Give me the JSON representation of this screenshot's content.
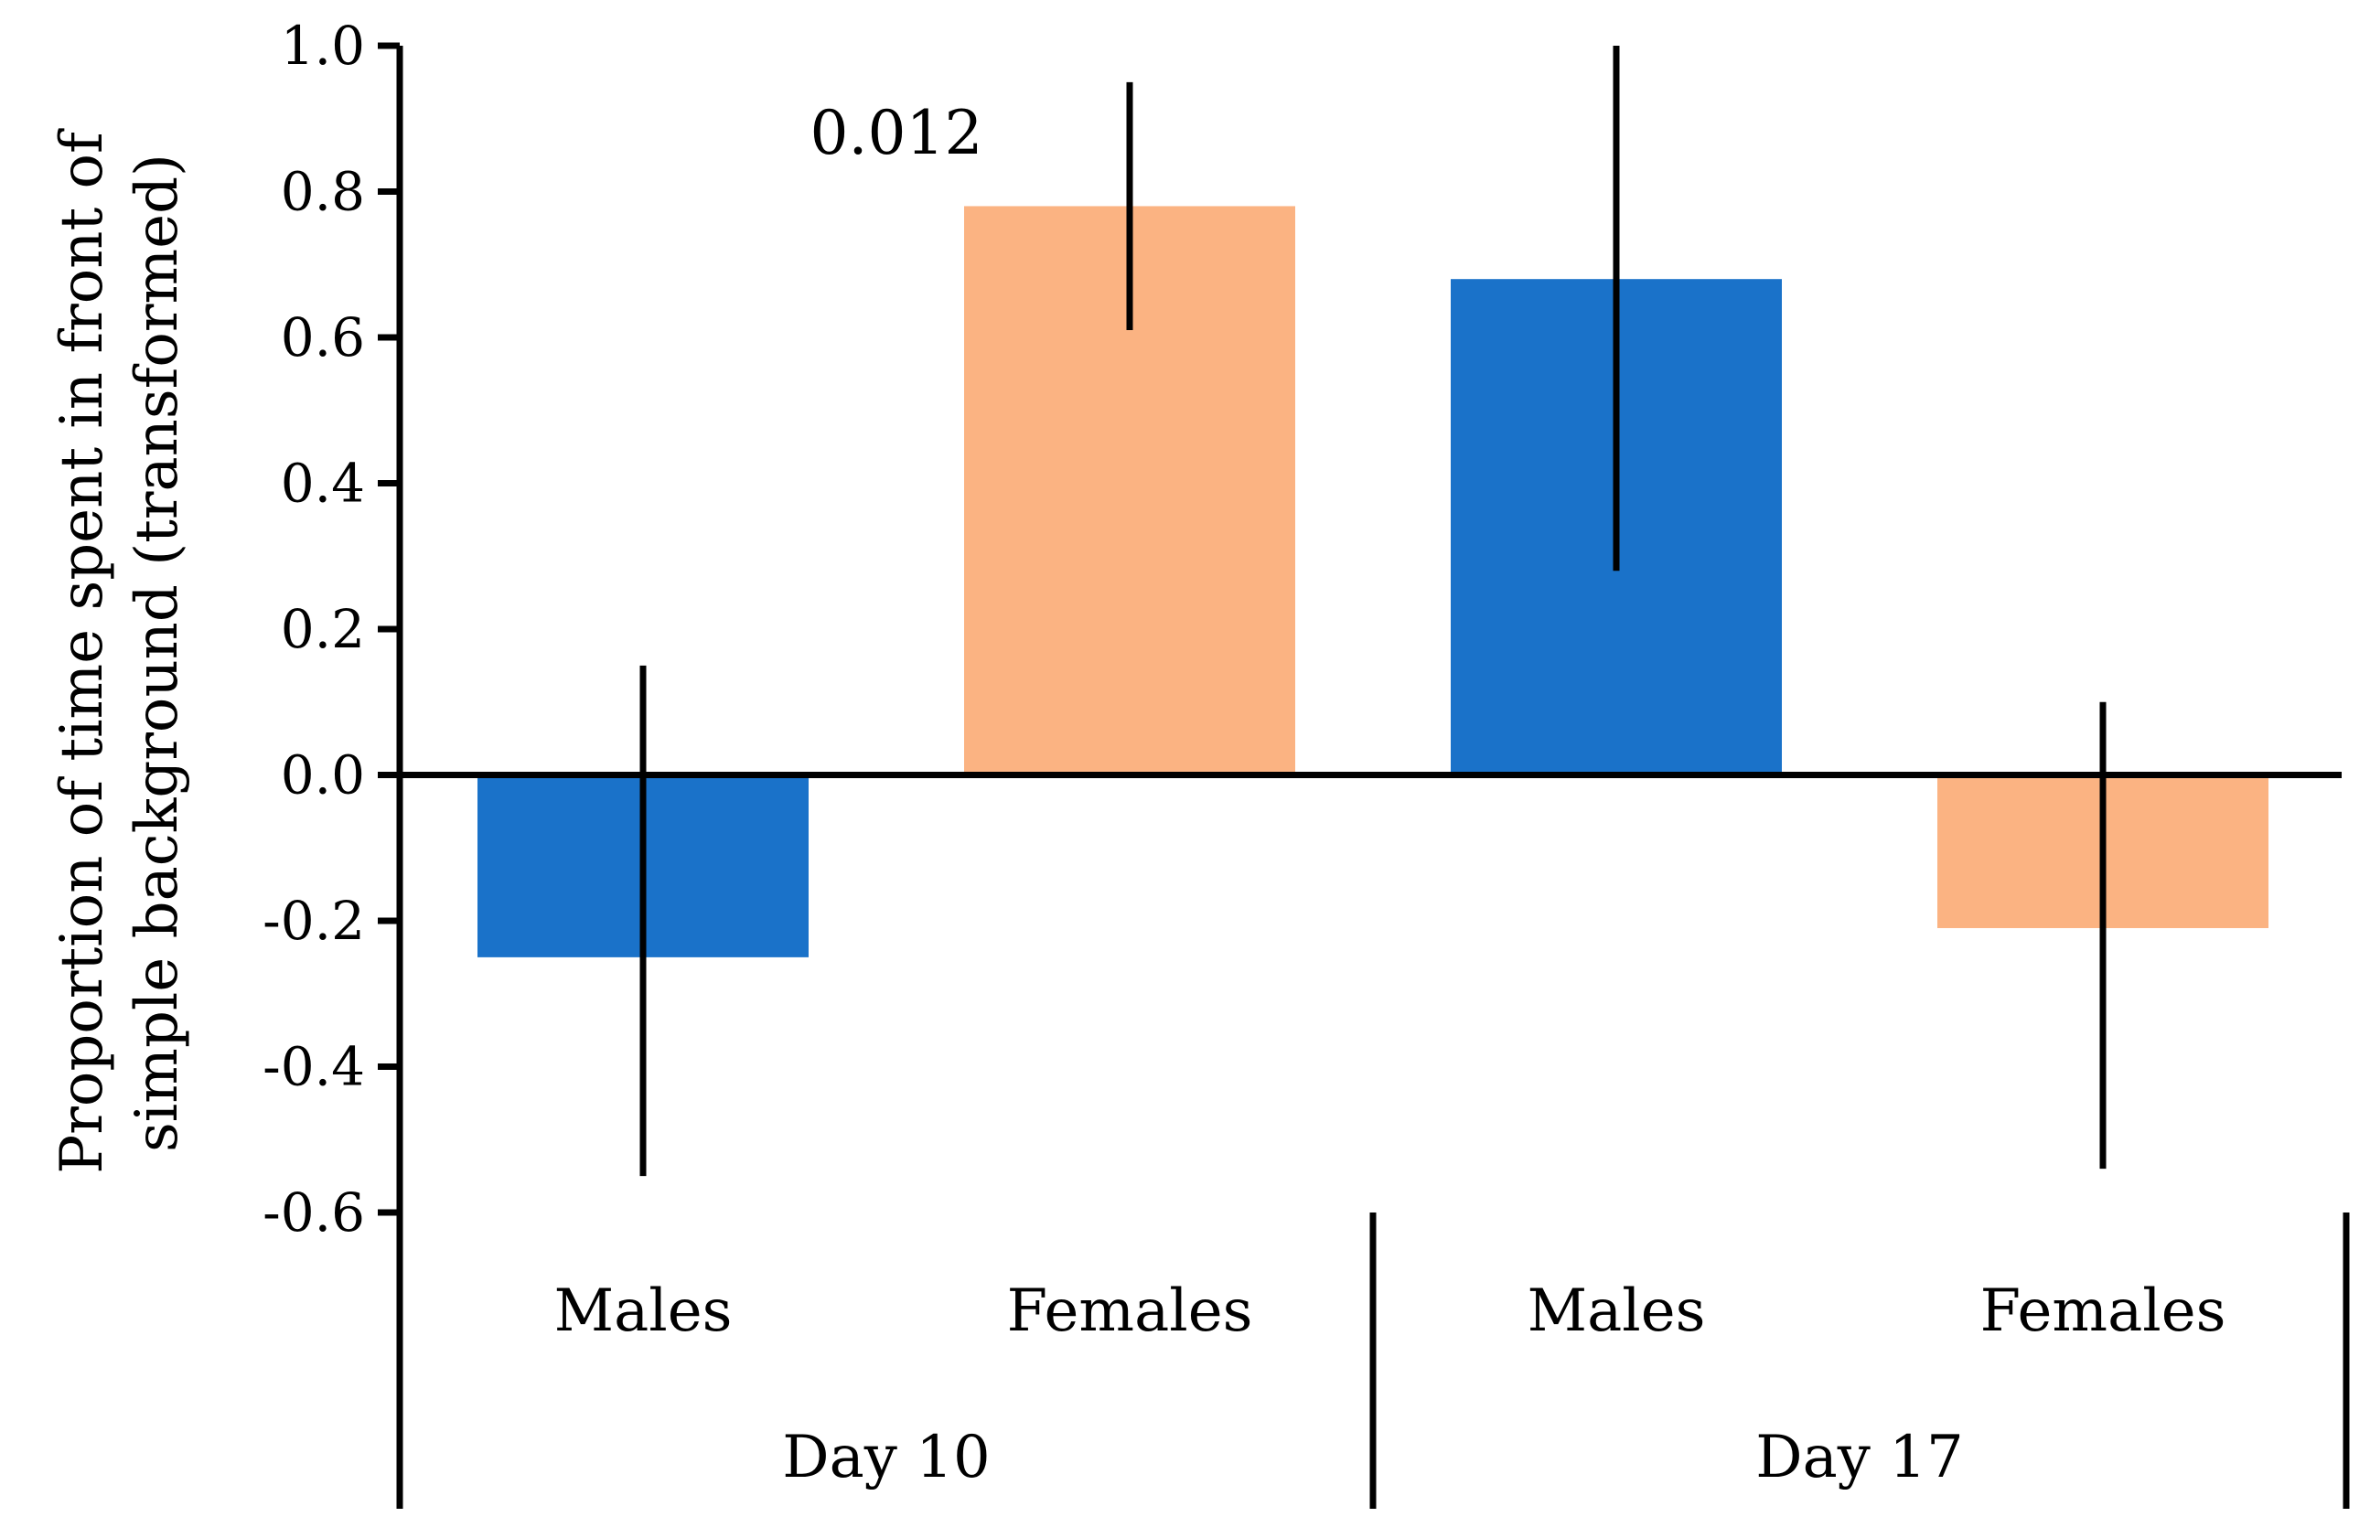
{
  "chart_data": {
    "type": "bar",
    "title": "",
    "xlabel": "",
    "ylabel_lines": [
      "Proportion of time spent in front of",
      "simple background (transformed)"
    ],
    "ylim": [
      -0.6,
      1.0
    ],
    "yticks": [
      1.0,
      0.8,
      0.6,
      0.4,
      0.2,
      0.0,
      -0.2,
      -0.4,
      -0.6
    ],
    "ytick_labels": [
      "1.0",
      "0.8",
      "0.6",
      "0.4",
      "0.2",
      "0.0",
      "-0.2",
      "-0.4",
      "-0.6"
    ],
    "groups": [
      {
        "label": "Day 10",
        "categories": [
          0,
          1
        ]
      },
      {
        "label": "Day 17",
        "categories": [
          2,
          3
        ]
      }
    ],
    "bars": [
      {
        "category": "Males",
        "group": "Day 10",
        "value": -0.25,
        "err_low": -0.55,
        "err_high": 0.15,
        "color": "#1a72c9"
      },
      {
        "category": "Females",
        "group": "Day 10",
        "value": 0.78,
        "err_low": 0.61,
        "err_high": 0.95,
        "color": "#fbb382"
      },
      {
        "category": "Males",
        "group": "Day 17",
        "value": 0.68,
        "err_low": 0.28,
        "err_high": 1.0,
        "color": "#1a72c9"
      },
      {
        "category": "Females",
        "group": "Day 17",
        "value": -0.21,
        "err_low": -0.54,
        "err_high": 0.1,
        "color": "#fbb382"
      }
    ],
    "annotations": [
      {
        "text": "0.012",
        "category_index": 1,
        "y": 0.88
      }
    ],
    "colors": {
      "males": "#1a72c9",
      "females": "#fbb382",
      "axis": "#000000"
    },
    "grid": false,
    "legend": "none"
  }
}
